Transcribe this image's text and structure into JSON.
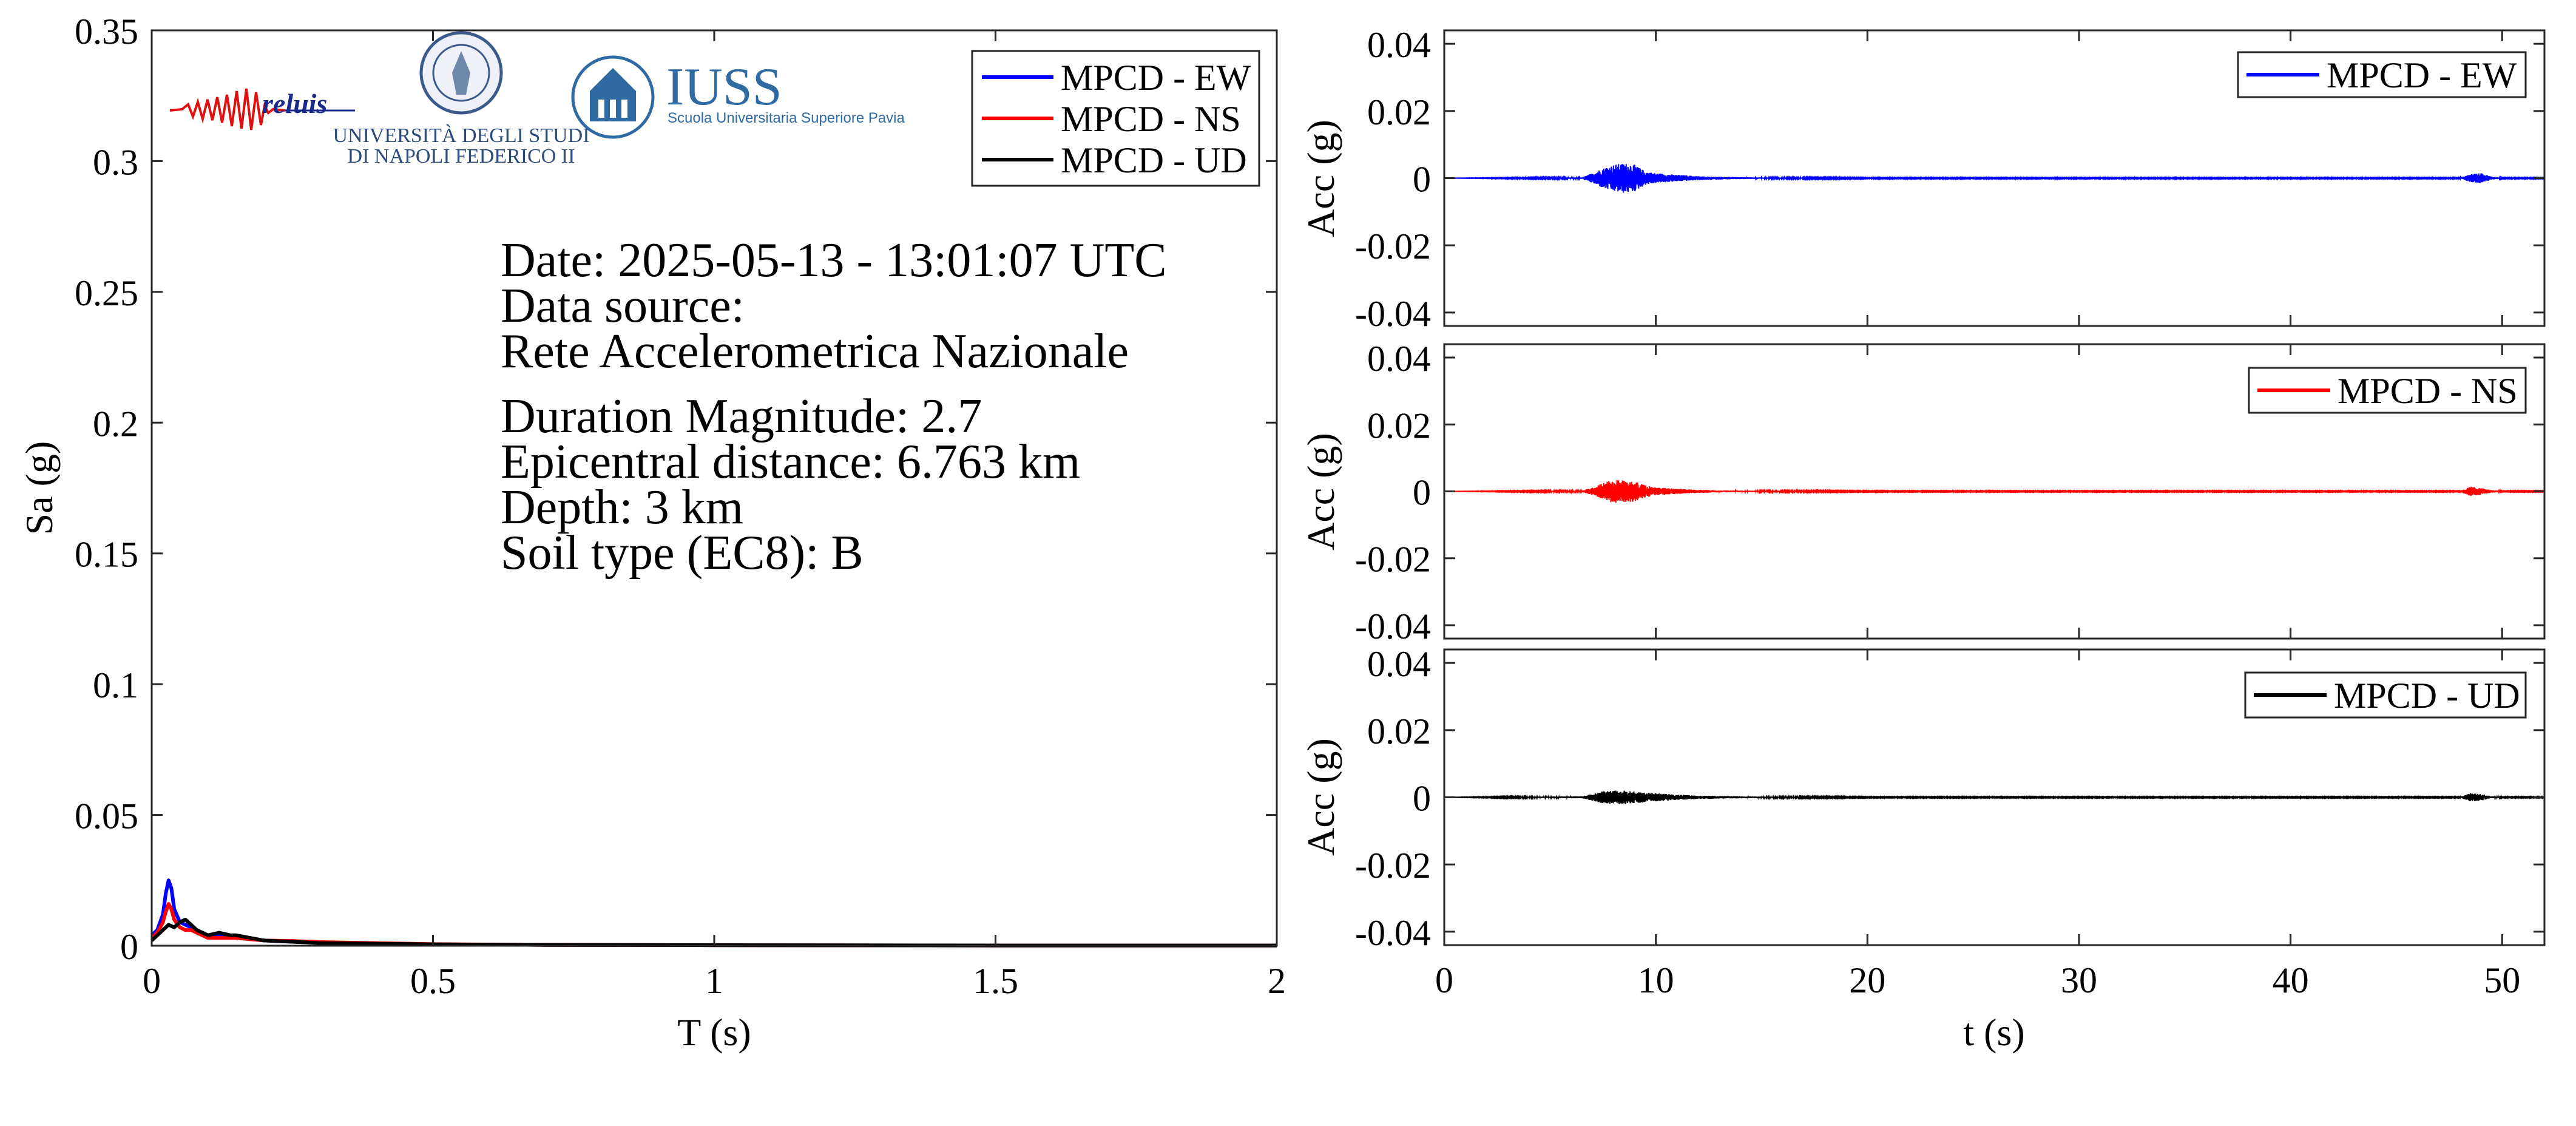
{
  "logos": {
    "reluis": "reluis",
    "unina_line1": "UNIVERSITÀ DEGLI STUDI",
    "unina_line2": "DI NAPOLI FEDERICO II",
    "iuss_title": "IUSS",
    "iuss_subtitle": "Scuola Universitaria Superiore Pavia"
  },
  "info": {
    "date": "Date: 2025-05-13 - 13:01:07 UTC",
    "source_label": "Data source:",
    "source_name": "Rete Accelerometrica Nazionale",
    "magnitude": "Duration Magnitude: 2.7",
    "distance": "Epicentral distance: 6.763 km",
    "depth": "Depth: 3 km",
    "soil": "Soil type (EC8): B"
  },
  "chart_data": [
    {
      "id": "spectrum",
      "type": "line",
      "xlabel": "T (s)",
      "ylabel": "Sa (g)",
      "xlim": [
        0,
        2
      ],
      "ylim": [
        0,
        0.35
      ],
      "xticks": [
        0,
        0.5,
        1,
        1.5,
        2
      ],
      "xtick_labels": [
        "0",
        "0.5",
        "1",
        "1.5",
        "2"
      ],
      "yticks": [
        0,
        0.05,
        0.1,
        0.15,
        0.2,
        0.25,
        0.3,
        0.35
      ],
      "ytick_labels": [
        "0",
        "0.05",
        "0.1",
        "0.15",
        "0.2",
        "0.25",
        "0.3",
        "0.35"
      ],
      "grid": false,
      "legend": "top-right",
      "series": [
        {
          "name": "MPCD - EW",
          "color": "#0000ff",
          "x": [
            0,
            0.01,
            0.02,
            0.025,
            0.03,
            0.035,
            0.04,
            0.05,
            0.06,
            0.07,
            0.08,
            0.1,
            0.12,
            0.15,
            0.2,
            0.25,
            0.3,
            0.4,
            0.5,
            0.7,
            1.0,
            1.5,
            2.0
          ],
          "y": [
            0.004,
            0.006,
            0.012,
            0.02,
            0.025,
            0.022,
            0.014,
            0.009,
            0.008,
            0.007,
            0.006,
            0.004,
            0.004,
            0.003,
            0.002,
            0.0015,
            0.0012,
            0.0008,
            0.0005,
            0.0003,
            0.0002,
            0.0001,
            0.0001
          ]
        },
        {
          "name": "MPCD - NS",
          "color": "#ff0000",
          "x": [
            0,
            0.01,
            0.02,
            0.025,
            0.03,
            0.035,
            0.04,
            0.05,
            0.06,
            0.07,
            0.08,
            0.1,
            0.12,
            0.15,
            0.2,
            0.25,
            0.3,
            0.4,
            0.5,
            0.7,
            1.0,
            1.5,
            2.0
          ],
          "y": [
            0.003,
            0.005,
            0.009,
            0.013,
            0.016,
            0.014,
            0.01,
            0.007,
            0.006,
            0.006,
            0.005,
            0.003,
            0.003,
            0.003,
            0.002,
            0.0018,
            0.0014,
            0.001,
            0.0006,
            0.0003,
            0.0002,
            0.0001,
            0.0001
          ]
        },
        {
          "name": "MPCD - UD",
          "color": "#000000",
          "x": [
            0,
            0.01,
            0.02,
            0.03,
            0.04,
            0.05,
            0.06,
            0.07,
            0.08,
            0.1,
            0.12,
            0.14,
            0.15,
            0.2,
            0.25,
            0.3,
            0.4,
            0.5,
            0.7,
            1.0,
            1.5,
            2.0
          ],
          "y": [
            0.002,
            0.004,
            0.006,
            0.008,
            0.007,
            0.009,
            0.01,
            0.008,
            0.006,
            0.004,
            0.005,
            0.004,
            0.004,
            0.002,
            0.0015,
            0.001,
            0.0008,
            0.0005,
            0.0003,
            0.0002,
            0.0001,
            0.0001
          ]
        }
      ]
    },
    {
      "id": "acc-ew",
      "type": "line",
      "xlabel": "",
      "ylabel": "Acc (g)",
      "xlim": [
        0,
        52
      ],
      "ylim": [
        -0.044,
        0.044
      ],
      "yticks": [
        -0.04,
        -0.02,
        0,
        0.02,
        0.04
      ],
      "ytick_labels": [
        "-0.04",
        "-0.02",
        "0",
        "0.02",
        "0.04"
      ],
      "xticks": [
        0,
        10,
        20,
        30,
        40,
        50
      ],
      "legend": "top-right",
      "series": [
        {
          "name": "MPCD - EW",
          "color": "#0000ff",
          "envelope": [
            [
              0,
              0
            ],
            [
              6.5,
              0.0002
            ],
            [
              7,
              0.0015
            ],
            [
              7.5,
              0.003
            ],
            [
              8,
              0.004
            ],
            [
              8.5,
              0.0045
            ],
            [
              9,
              0.004
            ],
            [
              9.5,
              0.002
            ],
            [
              10,
              0.0015
            ],
            [
              11,
              0.001
            ],
            [
              12,
              0.0006
            ],
            [
              13,
              0.0004
            ],
            [
              15,
              0.0002
            ],
            [
              20,
              0.0001
            ],
            [
              48,
              0.0001
            ],
            [
              48.5,
              0.0012
            ],
            [
              49,
              0.0015
            ],
            [
              49.5,
              0.0005
            ],
            [
              50,
              0.0001
            ],
            [
              52,
              0.0001
            ]
          ]
        }
      ]
    },
    {
      "id": "acc-ns",
      "type": "line",
      "xlabel": "",
      "ylabel": "Acc (g)",
      "xlim": [
        0,
        52
      ],
      "ylim": [
        -0.044,
        0.044
      ],
      "yticks": [
        -0.04,
        -0.02,
        0,
        0.02,
        0.04
      ],
      "ytick_labels": [
        "-0.04",
        "-0.02",
        "0",
        "0.02",
        "0.04"
      ],
      "xticks": [
        0,
        10,
        20,
        30,
        40,
        50
      ],
      "legend": "top-right",
      "series": [
        {
          "name": "MPCD - NS",
          "color": "#ff0000",
          "envelope": [
            [
              0,
              0
            ],
            [
              6.5,
              0.0002
            ],
            [
              7,
              0.0012
            ],
            [
              7.5,
              0.0025
            ],
            [
              8,
              0.0035
            ],
            [
              8.5,
              0.0035
            ],
            [
              9,
              0.003
            ],
            [
              9.5,
              0.0018
            ],
            [
              10,
              0.0012
            ],
            [
              11,
              0.0008
            ],
            [
              12,
              0.0005
            ],
            [
              13,
              0.0003
            ],
            [
              15,
              0.0002
            ],
            [
              20,
              0.0001
            ],
            [
              48,
              0.0001
            ],
            [
              48.5,
              0.0015
            ],
            [
              49,
              0.001
            ],
            [
              49.5,
              0.0004
            ],
            [
              50,
              0.0001
            ],
            [
              52,
              0.0001
            ]
          ]
        }
      ]
    },
    {
      "id": "acc-ud",
      "type": "line",
      "xlabel": "t (s)",
      "ylabel": "Acc (g)",
      "xlim": [
        0,
        52
      ],
      "ylim": [
        -0.044,
        0.044
      ],
      "yticks": [
        -0.04,
        -0.02,
        0,
        0.02,
        0.04
      ],
      "ytick_labels": [
        "-0.04",
        "-0.02",
        "0",
        "0.02",
        "0.04"
      ],
      "xticks": [
        0,
        10,
        20,
        30,
        40,
        50
      ],
      "xtick_labels": [
        "0",
        "10",
        "20",
        "30",
        "40",
        "50"
      ],
      "legend": "top-right",
      "series": [
        {
          "name": "MPCD - UD",
          "color": "#000000",
          "envelope": [
            [
              0,
              0
            ],
            [
              6.5,
              0.0003
            ],
            [
              7,
              0.001
            ],
            [
              7.5,
              0.0018
            ],
            [
              8,
              0.002
            ],
            [
              8.5,
              0.002
            ],
            [
              9,
              0.0018
            ],
            [
              9.5,
              0.0014
            ],
            [
              10,
              0.0012
            ],
            [
              11,
              0.0008
            ],
            [
              12,
              0.0005
            ],
            [
              13,
              0.0004
            ],
            [
              15,
              0.0002
            ],
            [
              20,
              0.0001
            ],
            [
              48,
              0.0001
            ],
            [
              48.5,
              0.0012
            ],
            [
              49,
              0.001
            ],
            [
              49.5,
              0.0003
            ],
            [
              50,
              0.0001
            ],
            [
              52,
              0.0001
            ]
          ]
        }
      ]
    }
  ]
}
